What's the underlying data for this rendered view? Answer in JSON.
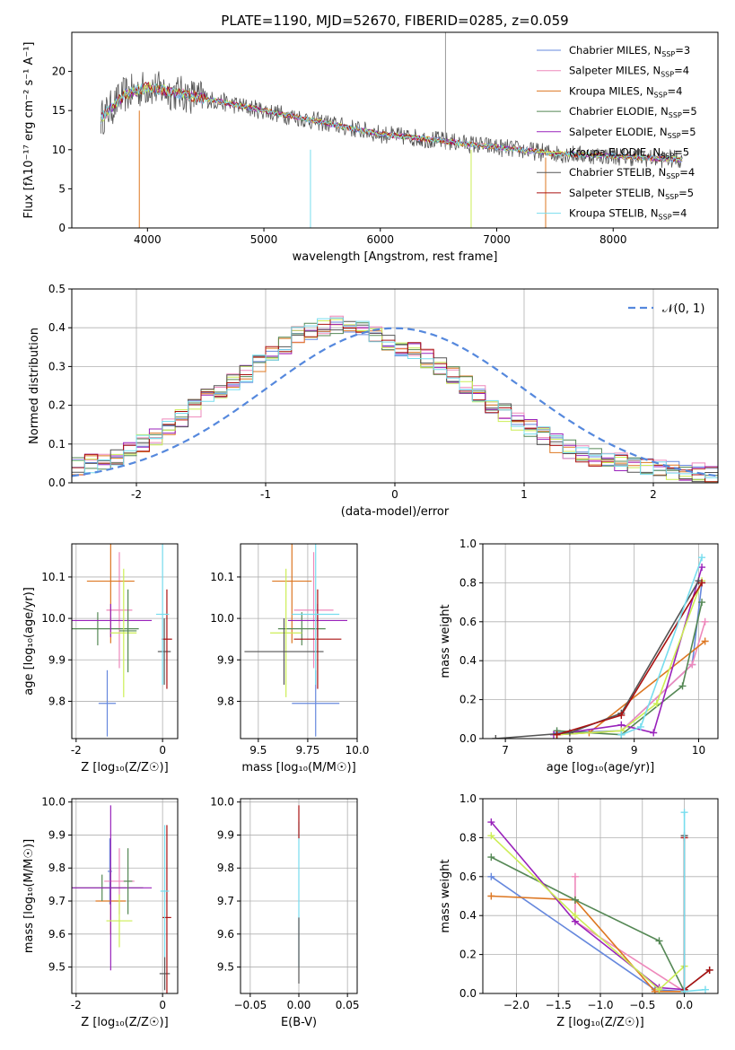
{
  "figure_title": "PLATE=1190, MJD=52670, FIBERID=0285, z=0.059",
  "palette": {
    "blue": "#6688dd",
    "pink": "#ee88bb",
    "orange": "#dd7722",
    "green": "#558855",
    "purple": "#9922bb",
    "lime": "#ccee55",
    "gray": "#555555",
    "red": "#aa1111",
    "cyan": "#77ddee"
  },
  "legend_entries": [
    {
      "label": "Chabrier MILES, N",
      "sub": "SSP",
      "tail": "=3",
      "color": "#6688dd"
    },
    {
      "label": "Salpeter MILES, N",
      "sub": "SSP",
      "tail": "=4",
      "color": "#ee88bb"
    },
    {
      "label": "Kroupa MILES, N",
      "sub": "SSP",
      "tail": "=4",
      "color": "#dd7722"
    },
    {
      "label": "Chabrier ELODIE, N",
      "sub": "SSP",
      "tail": "=5",
      "color": "#558855"
    },
    {
      "label": "Salpeter ELODIE, N",
      "sub": "SSP",
      "tail": "=5",
      "color": "#9922bb"
    },
    {
      "label": "Kroupa ELODIE, N",
      "sub": "SSP",
      "tail": "=5",
      "color": "#ccee55"
    },
    {
      "label": "Chabrier STELIB, N",
      "sub": "SSP",
      "tail": "=4",
      "color": "#555555"
    },
    {
      "label": "Salpeter STELIB, N",
      "sub": "SSP",
      "tail": "=5",
      "color": "#aa1111"
    },
    {
      "label": "Kroupa STELIB, N",
      "sub": "SSP",
      "tail": "=4",
      "color": "#77ddee"
    }
  ],
  "chart_data": [
    {
      "id": "spectrum",
      "type": "line",
      "xlabel": "wavelength [Angstrom, rest frame]",
      "ylabel": "Flux [fλ10⁻¹⁷ erg cm⁻² s⁻¹ A⁻¹]",
      "xlim": [
        3350,
        8900
      ],
      "ylim": [
        0,
        25
      ],
      "xticks": [
        4000,
        5000,
        6000,
        7000,
        8000
      ],
      "yticks": [
        0,
        5,
        10,
        15,
        20
      ],
      "grid": false,
      "data_trend": {
        "x": [
          3600,
          3800,
          4000,
          4500,
          5000,
          5500,
          6000,
          6500,
          7000,
          7500,
          8000,
          8600
        ],
        "y": [
          14,
          17,
          18,
          16.5,
          15,
          13.5,
          12,
          11.2,
          10.3,
          9.5,
          9.2,
          8.7
        ]
      }
    },
    {
      "id": "residuals",
      "type": "step",
      "xlabel": "(data-model)/error",
      "ylabel": "Normed distribution",
      "xlim": [
        -2.5,
        2.5
      ],
      "ylim": [
        0,
        0.5
      ],
      "xticks": [
        -2,
        -1,
        0,
        1,
        2
      ],
      "yticks": [
        0.0,
        0.1,
        0.2,
        0.3,
        0.4,
        0.5
      ],
      "grid": true,
      "legend": "top-right",
      "legend_label": "𝒩(0, 1)",
      "reference_curve": {
        "mu": 0,
        "sigma": 1
      },
      "histogram_envelope": {
        "x": [
          -2.5,
          -2.2,
          -2.0,
          -1.8,
          -1.6,
          -1.4,
          -1.2,
          -1.0,
          -0.8,
          -0.6,
          -0.4,
          -0.2,
          0.0,
          0.2,
          0.4,
          0.6,
          0.8,
          1.0,
          1.2,
          1.4,
          1.6,
          1.8,
          2.0,
          2.2,
          2.5
        ],
        "y": [
          0.04,
          0.06,
          0.09,
          0.13,
          0.18,
          0.23,
          0.27,
          0.32,
          0.37,
          0.4,
          0.41,
          0.39,
          0.36,
          0.33,
          0.29,
          0.24,
          0.19,
          0.15,
          0.11,
          0.08,
          0.06,
          0.05,
          0.04,
          0.03,
          0.025
        ]
      }
    },
    {
      "id": "age_vs_Z",
      "type": "errorbar",
      "xlabel": "Z [log₁₀(Z/Z☉)]",
      "ylabel": "age  [log₁₀(age/yr)]",
      "xlim": [
        -2.1,
        0.35
      ],
      "ylim": [
        9.71,
        10.18
      ],
      "xticks": [
        -2,
        0
      ],
      "yticks": [
        9.8,
        9.9,
        10.0,
        10.1
      ],
      "grid": true,
      "points": [
        {
          "c": "blue",
          "x": -1.28,
          "xerr": 0.2,
          "y": 9.795,
          "yerr": 0.08
        },
        {
          "c": "pink",
          "x": -1.0,
          "xerr": 0.3,
          "y": 10.02,
          "yerr": 0.14
        },
        {
          "c": "orange",
          "x": -1.2,
          "xerr": 0.55,
          "y": 10.09,
          "yerr": 0.15
        },
        {
          "c": "green",
          "x": -1.5,
          "xerr": 0.95,
          "y": 9.975,
          "yerr": 0.04
        },
        {
          "c": "purple",
          "x": -1.2,
          "xerr": 0.95,
          "y": 9.995,
          "yerr": 0.04
        },
        {
          "c": "lime",
          "x": -0.9,
          "xerr": 0.3,
          "y": 9.965,
          "yerr": 0.155
        },
        {
          "c": "green",
          "x": -0.8,
          "xerr": 0.2,
          "y": 9.97,
          "yerr": 0.1
        },
        {
          "c": "gray",
          "x": 0.04,
          "xerr": 0.15,
          "y": 9.92,
          "yerr": 0.08
        },
        {
          "c": "red",
          "x": 0.1,
          "xerr": 0.12,
          "y": 9.95,
          "yerr": 0.12
        },
        {
          "c": "cyan",
          "x": 0.0,
          "xerr": 0.15,
          "y": 10.01,
          "yerr": 0.17
        }
      ]
    },
    {
      "id": "age_vs_mass",
      "type": "errorbar",
      "xlabel": "mass [log₁₀(M/M☉)]",
      "ylabel": "",
      "xlim": [
        9.41,
        10.0
      ],
      "ylim": [
        9.71,
        10.18
      ],
      "xticks": [
        9.5,
        9.75,
        10.0
      ],
      "xticklabels": [
        "9.5",
        "9.75",
        "10.0"
      ],
      "yticks": [
        9.8,
        9.9,
        10.0,
        10.1
      ],
      "grid": true,
      "points": [
        {
          "c": "blue",
          "x": 9.79,
          "xerr": 0.12,
          "y": 9.795,
          "yerr": 0.08
        },
        {
          "c": "pink",
          "x": 9.78,
          "xerr": 0.1,
          "y": 10.02,
          "yerr": 0.14
        },
        {
          "c": "orange",
          "x": 9.67,
          "xerr": 0.1,
          "y": 10.09,
          "yerr": 0.15
        },
        {
          "c": "green",
          "x": 9.72,
          "xerr": 0.12,
          "y": 9.975,
          "yerr": 0.04
        },
        {
          "c": "purple",
          "x": 9.8,
          "xerr": 0.15,
          "y": 9.995,
          "yerr": 0.04
        },
        {
          "c": "lime",
          "x": 9.64,
          "xerr": 0.08,
          "y": 9.965,
          "yerr": 0.155
        },
        {
          "c": "gray",
          "x": 9.63,
          "xerr": 0.2,
          "y": 9.92,
          "yerr": 0.08
        },
        {
          "c": "red",
          "x": 9.8,
          "xerr": 0.12,
          "y": 9.95,
          "yerr": 0.12
        },
        {
          "c": "cyan",
          "x": 9.79,
          "xerr": 0.12,
          "y": 10.01,
          "yerr": 0.17
        }
      ]
    },
    {
      "id": "mass_weight_vs_age",
      "type": "line",
      "xlabel": "age  [log₁₀(age/yr)]",
      "ylabel": "mass weight",
      "xlim": [
        6.65,
        10.3
      ],
      "ylim": [
        0,
        1
      ],
      "xticks": [
        7,
        8,
        9,
        10
      ],
      "yticks": [
        0.0,
        0.2,
        0.4,
        0.6,
        0.8,
        1.0
      ],
      "grid": true,
      "series": [
        {
          "c": "blue",
          "x": [
            7.8,
            8.8,
            9.9,
            10.05
          ],
          "y": [
            0.03,
            0.04,
            0.38,
            0.8
          ]
        },
        {
          "c": "pink",
          "x": [
            7.8,
            8.8,
            9.9,
            10.1
          ],
          "y": [
            0.02,
            0.04,
            0.38,
            0.6
          ]
        },
        {
          "c": "orange",
          "x": [
            7.8,
            8.3,
            10.1
          ],
          "y": [
            0.02,
            0.03,
            0.5
          ]
        },
        {
          "c": "green",
          "x": [
            7.8,
            8.8,
            9.75,
            10.05
          ],
          "y": [
            0.04,
            0.02,
            0.27,
            0.7
          ]
        },
        {
          "c": "purple",
          "x": [
            7.75,
            8.8,
            9.3,
            10.05
          ],
          "y": [
            0.02,
            0.07,
            0.03,
            0.88
          ]
        },
        {
          "c": "lime",
          "x": [
            7.8,
            8.8,
            9.35,
            10.05
          ],
          "y": [
            0.02,
            0.04,
            0.18,
            0.81
          ]
        },
        {
          "c": "gray",
          "x": [
            6.85,
            8.0,
            8.8,
            10.0
          ],
          "y": [
            0.0,
            0.03,
            0.13,
            0.81
          ]
        },
        {
          "c": "red",
          "x": [
            7.8,
            8.8,
            10.05
          ],
          "y": [
            0.02,
            0.12,
            0.8
          ]
        },
        {
          "c": "cyan",
          "x": [
            8.8,
            9.1,
            10.05
          ],
          "y": [
            0.02,
            0.06,
            0.93
          ]
        }
      ]
    },
    {
      "id": "mass_vs_Z",
      "type": "errorbar",
      "xlabel": "Z [log₁₀(Z/Z☉)]",
      "ylabel": "mass [log₁₀(M/M☉)]",
      "xlim": [
        -2.1,
        0.35
      ],
      "ylim": [
        9.42,
        10.01
      ],
      "xticks": [
        -2,
        0
      ],
      "yticks": [
        9.5,
        9.6,
        9.7,
        9.8,
        9.9,
        10.0
      ],
      "grid": true,
      "points": [
        {
          "c": "blue",
          "x": -1.22,
          "xerr": 0.05,
          "y": 9.79,
          "yerr": 0.1
        },
        {
          "c": "pink",
          "x": -1.0,
          "xerr": 0.35,
          "y": 9.76,
          "yerr": 0.1
        },
        {
          "c": "orange",
          "x": -1.2,
          "xerr": 0.35,
          "y": 9.7,
          "yerr": 0.1
        },
        {
          "c": "green",
          "x": -1.4,
          "xerr": 0.95,
          "y": 9.74,
          "yerr": 0.04
        },
        {
          "c": "purple",
          "x": -1.2,
          "xerr": 0.95,
          "y": 9.74,
          "yerr": 0.25
        },
        {
          "c": "lime",
          "x": -1.0,
          "xerr": 0.3,
          "y": 9.64,
          "yerr": 0.08
        },
        {
          "c": "green",
          "x": -0.8,
          "xerr": 0.1,
          "y": 9.76,
          "yerr": 0.1
        },
        {
          "c": "gray",
          "x": 0.05,
          "xerr": 0.12,
          "y": 9.48,
          "yerr": 0.05
        },
        {
          "c": "red",
          "x": 0.1,
          "xerr": 0.1,
          "y": 9.65,
          "yerr": 0.28
        },
        {
          "c": "cyan",
          "x": 0.05,
          "xerr": 0.1,
          "y": 9.73,
          "yerr": 0.2
        }
      ]
    },
    {
      "id": "mass_vs_ebv",
      "type": "errorbar",
      "xlabel": "E(B-V)",
      "ylabel": "",
      "xlim": [
        -0.06,
        0.06
      ],
      "ylim": [
        9.42,
        10.01
      ],
      "xticks": [
        -0.05,
        0.0,
        0.05
      ],
      "xticklabels": [
        "−0.05",
        "0.00",
        "0.05"
      ],
      "yticks": [
        9.5,
        9.6,
        9.7,
        9.8,
        9.9,
        10.0
      ],
      "grid": true,
      "points": [
        {
          "c": "cyan",
          "x": 0.0,
          "xerr": 0,
          "y": 9.72,
          "yerr": 0.22
        },
        {
          "c": "red",
          "x": 0.0,
          "xerr": 0,
          "y": 9.94,
          "yerr": 0.05
        },
        {
          "c": "gray",
          "x": 0.0,
          "xerr": 0,
          "y": 9.55,
          "yerr": 0.1
        }
      ]
    },
    {
      "id": "mass_weight_vs_Z",
      "type": "line",
      "xlabel": "Z [log₁₀(Z/Z☉)]",
      "ylabel": "mass weight",
      "xlim": [
        -2.4,
        0.4
      ],
      "ylim": [
        0,
        1
      ],
      "xticks": [
        -2.0,
        -1.5,
        -1.0,
        -0.5,
        0.0
      ],
      "xticklabels": [
        "−2.0",
        "−1.5",
        "−1.0",
        "−0.5",
        "0.0"
      ],
      "yticks": [
        0.0,
        0.2,
        0.4,
        0.6,
        0.8,
        1.0
      ],
      "grid": true,
      "series": [
        {
          "c": "blue",
          "x": [
            -2.3,
            -0.35,
            0.0
          ],
          "y": [
            0.6,
            0.02,
            0.01
          ]
        },
        {
          "c": "pink",
          "x": [
            -1.3,
            -1.3,
            0.0
          ],
          "y": [
            0.6,
            0.37,
            0.01
          ]
        },
        {
          "c": "orange",
          "x": [
            -2.3,
            -1.3,
            -0.35,
            0.0
          ],
          "y": [
            0.5,
            0.48,
            0.01,
            0.01
          ]
        },
        {
          "c": "green",
          "x": [
            -2.3,
            -1.3,
            -0.3,
            0.0
          ],
          "y": [
            0.7,
            0.48,
            0.27,
            0.01
          ]
        },
        {
          "c": "purple",
          "x": [
            -2.3,
            -1.3,
            -0.3,
            0.0
          ],
          "y": [
            0.88,
            0.37,
            0.03,
            0.02
          ]
        },
        {
          "c": "lime",
          "x": [
            -2.3,
            -1.3,
            -0.3,
            0.0
          ],
          "y": [
            0.81,
            0.4,
            0.02,
            0.14
          ]
        },
        {
          "c": "gray",
          "x": [
            0.0,
            0.0,
            0.3
          ],
          "y": [
            0.81,
            0.02,
            0.12
          ]
        },
        {
          "c": "red",
          "x": [
            0.0,
            0.0,
            0.3
          ],
          "y": [
            0.8,
            0.02,
            0.12
          ]
        },
        {
          "c": "cyan",
          "x": [
            0.0,
            0.0,
            0.25
          ],
          "y": [
            0.93,
            0.01,
            0.02
          ]
        }
      ]
    }
  ]
}
